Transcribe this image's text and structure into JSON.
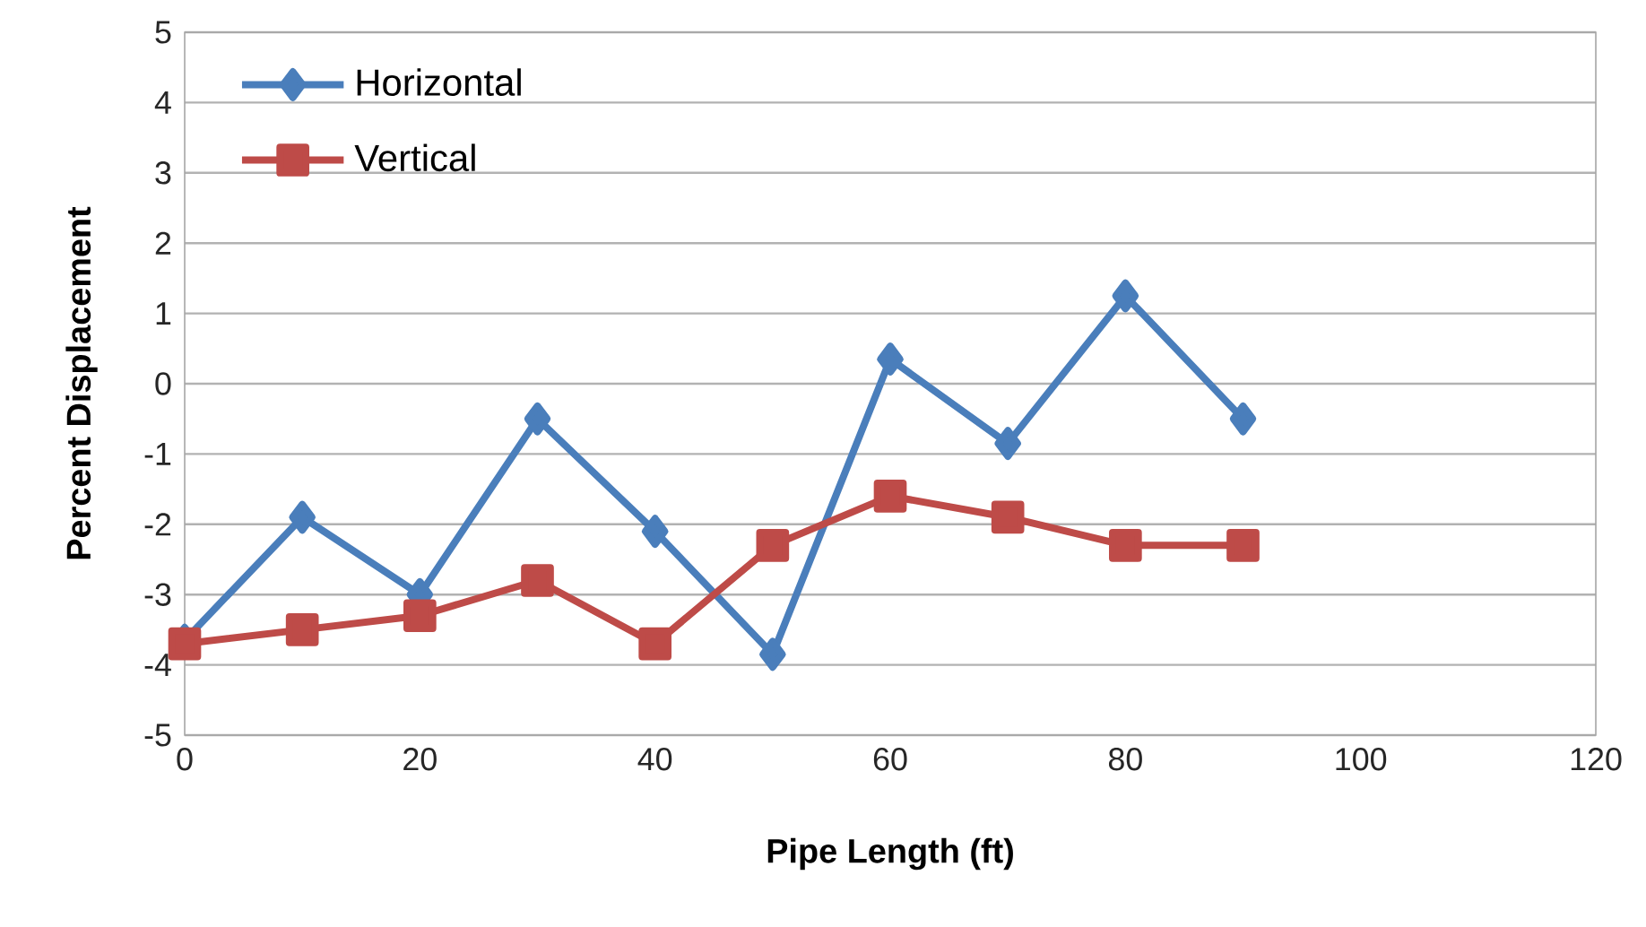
{
  "chart_data": {
    "type": "line",
    "xlabel": "Pipe Length (ft)",
    "ylabel": "Percent Displacement",
    "x": [
      0,
      10,
      20,
      30,
      40,
      50,
      60,
      70,
      80,
      90
    ],
    "series": [
      {
        "name": "Horizontal",
        "color": "#4a7ebb",
        "marker": "diamond",
        "values": [
          -3.65,
          -1.9,
          -3.0,
          -0.5,
          -2.1,
          -3.85,
          0.35,
          -0.85,
          1.25,
          -0.5
        ]
      },
      {
        "name": "Vertical",
        "color": "#be4b48",
        "marker": "square",
        "values": [
          -3.7,
          -3.5,
          -3.3,
          -2.8,
          -3.7,
          -2.3,
          -1.6,
          -1.9,
          -2.3,
          -2.3
        ]
      }
    ],
    "xlim": [
      0,
      120
    ],
    "xticks": [
      0,
      20,
      40,
      60,
      80,
      100,
      120
    ],
    "ylim": [
      -5,
      5
    ],
    "yticks": [
      -5,
      -4,
      -3,
      -2,
      -1,
      0,
      1,
      2,
      3,
      4,
      5
    ],
    "grid": "y",
    "legend": "top left",
    "line_style": "solid"
  }
}
